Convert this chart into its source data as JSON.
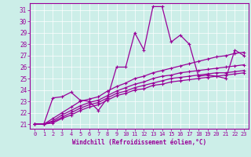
{
  "xlabel": "Windchill (Refroidissement éolien,°C)",
  "bg_color": "#cceee8",
  "line_color": "#990099",
  "xlim": [
    -0.5,
    23.5
  ],
  "ylim": [
    20.6,
    31.6
  ],
  "xticks": [
    0,
    1,
    2,
    3,
    4,
    5,
    6,
    7,
    8,
    9,
    10,
    11,
    12,
    13,
    14,
    15,
    16,
    17,
    18,
    19,
    20,
    21,
    22,
    23
  ],
  "yticks": [
    21,
    22,
    23,
    24,
    25,
    26,
    27,
    28,
    29,
    30,
    31
  ],
  "main_series": [
    21,
    21,
    23.3,
    23.4,
    23.8,
    23.1,
    23.0,
    22.2,
    23.3,
    26.0,
    26.0,
    29.0,
    27.5,
    31.3,
    31.3,
    28.2,
    28.8,
    28.0,
    25.2,
    25.3,
    25.2,
    25.0,
    27.5,
    27.0
  ],
  "trend1": [
    21.0,
    21.0,
    21.5,
    22.0,
    22.5,
    23.0,
    23.2,
    23.4,
    23.9,
    24.3,
    24.6,
    25.0,
    25.2,
    25.5,
    25.7,
    25.9,
    26.1,
    26.3,
    26.5,
    26.7,
    26.9,
    27.0,
    27.2,
    27.3
  ],
  "trend2": [
    21.0,
    21.0,
    21.3,
    21.8,
    22.2,
    22.6,
    22.9,
    23.1,
    23.5,
    23.9,
    24.2,
    24.5,
    24.7,
    25.0,
    25.2,
    25.3,
    25.5,
    25.6,
    25.7,
    25.8,
    25.9,
    26.0,
    26.1,
    26.2
  ],
  "trend3": [
    21.0,
    21.0,
    21.2,
    21.6,
    22.0,
    22.4,
    22.7,
    22.9,
    23.3,
    23.7,
    23.9,
    24.2,
    24.4,
    24.6,
    24.8,
    25.0,
    25.1,
    25.2,
    25.3,
    25.4,
    25.5,
    25.5,
    25.6,
    25.7
  ],
  "trend4": [
    21.0,
    21.0,
    21.1,
    21.5,
    21.8,
    22.2,
    22.5,
    22.7,
    23.1,
    23.5,
    23.7,
    24.0,
    24.1,
    24.4,
    24.5,
    24.7,
    24.8,
    24.9,
    25.0,
    25.1,
    25.2,
    25.3,
    25.4,
    25.5
  ]
}
